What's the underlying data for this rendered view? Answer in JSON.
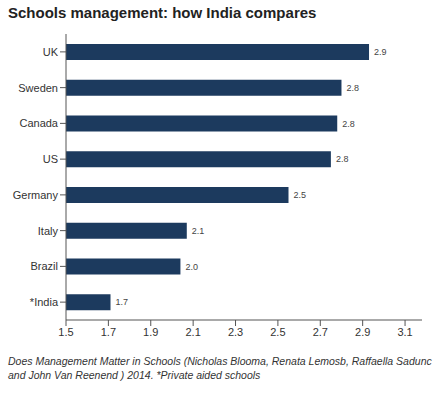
{
  "chart_data": {
    "type": "bar",
    "orientation": "horizontal",
    "title": "Schools management: how India compares",
    "source": "Does Management Matter in Schools (Nicholas Blooma, Renata Lemosb, Raffaella Sadunc and John Van Reenend ) 2014. *Private aided schools",
    "categories": [
      "UK",
      "Sweden",
      "Canada",
      "US",
      "Germany",
      "Italy",
      "Brazil",
      "*India"
    ],
    "values": [
      2.93,
      2.8,
      2.78,
      2.75,
      2.55,
      2.07,
      2.04,
      1.71
    ],
    "value_labels": [
      "2.9",
      "2.8",
      "2.8",
      "2.8",
      "2.5",
      "2.1",
      "2.0",
      "1.7"
    ],
    "data_labels": true,
    "color": "#1c3a5e",
    "xlim": [
      1.5,
      3.18
    ],
    "xticks": [
      1.5,
      1.7,
      1.9,
      2.1,
      2.3,
      2.5,
      2.7,
      2.9,
      3.1
    ],
    "grid": false
  }
}
